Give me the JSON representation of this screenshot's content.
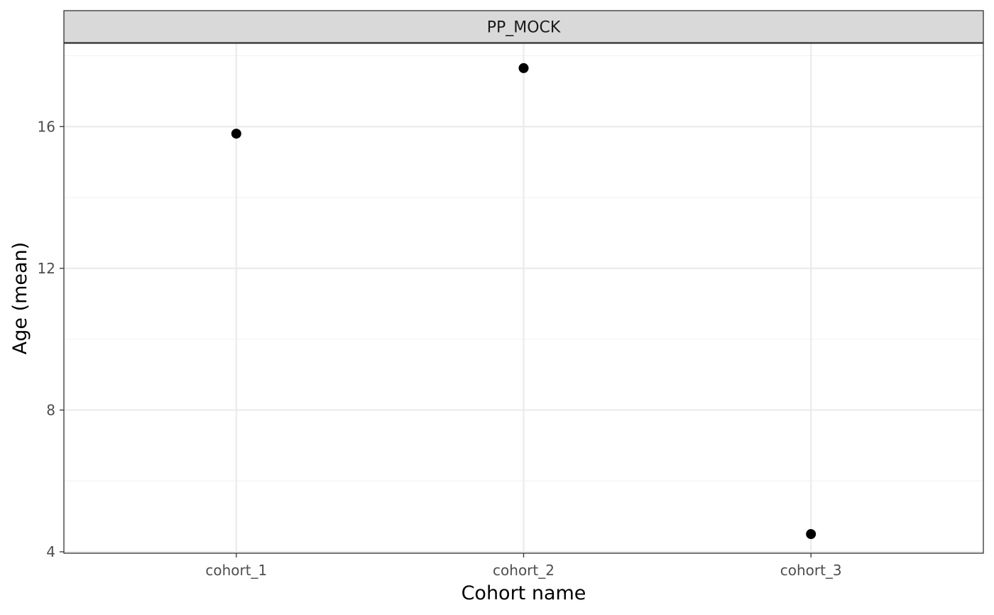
{
  "chart_data": {
    "type": "scatter",
    "facet_label": "PP_MOCK",
    "categories": [
      "cohort_1",
      "cohort_2",
      "cohort_3"
    ],
    "series": [
      {
        "values": [
          15.8,
          17.65,
          4.5
        ]
      }
    ],
    "xlabel": "Cohort name",
    "ylabel": "Age (mean)",
    "ylim": [
      3.96,
      18.35
    ],
    "y_ticks": [
      4,
      8,
      12,
      16
    ],
    "y_tick_labels": [
      "4",
      "8",
      "12",
      "16"
    ],
    "y_minor_ticks": [
      6,
      10,
      14,
      18
    ],
    "grid": true,
    "legend": "none",
    "colors": {
      "point": "#000000",
      "strip_fill": "#d9d9d9",
      "strip_border": "#333333",
      "panel_border": "#333333",
      "grid_major": "#ebebeb",
      "grid_minor": "#f2f2f2"
    }
  }
}
